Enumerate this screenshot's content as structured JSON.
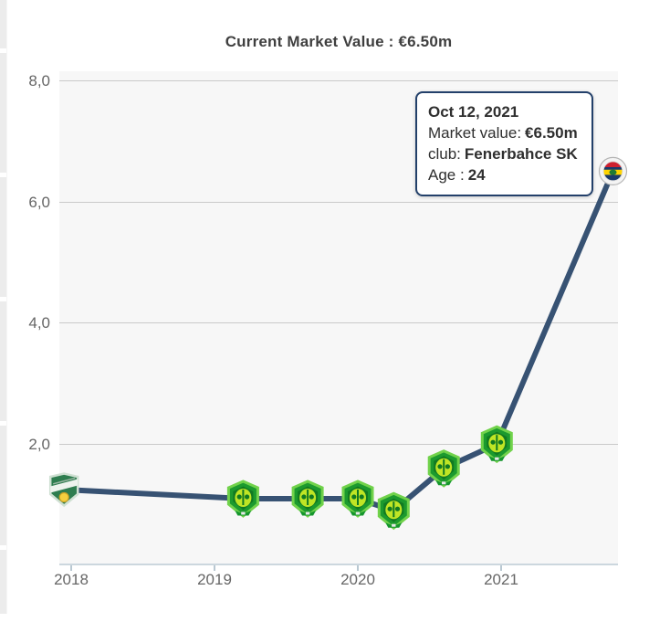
{
  "chart": {
    "title": "Current Market Value : €6.50m"
  },
  "tooltip": {
    "date": "Oct 12, 2021",
    "market_value_label": "Market value:",
    "market_value": "€6.50m",
    "club_label": "club:",
    "club": "Fenerbahce SK",
    "age_label": "Age :",
    "age": "24"
  },
  "chart_data": {
    "type": "line",
    "title": "Current Market Value : €6.50m",
    "xlabel": "",
    "ylabel": "",
    "x_ticks": [
      "2018",
      "2019",
      "2020",
      "2021"
    ],
    "y_ticks": [
      {
        "value": 8,
        "label": "8,0"
      },
      {
        "value": 6,
        "label": "6,0"
      },
      {
        "value": 4,
        "label": "4,0"
      },
      {
        "value": 2,
        "label": "2,0"
      }
    ],
    "ylim": [
      0,
      8.2
    ],
    "xlim_years": [
      2017.8,
      2021.9
    ],
    "grid": true,
    "legend": "none",
    "line_width": 6,
    "points": [
      {
        "x": 2017.95,
        "value": 1.25,
        "marker": "green-shield-banner-crest"
      },
      {
        "x": 2019.2,
        "value": 1.1,
        "marker": "green-shield-crest"
      },
      {
        "x": 2019.65,
        "value": 1.1,
        "marker": "green-shield-crest"
      },
      {
        "x": 2020.0,
        "value": 1.1,
        "marker": "green-shield-crest"
      },
      {
        "x": 2020.25,
        "value": 0.9,
        "marker": "green-shield-crest"
      },
      {
        "x": 2020.6,
        "value": 1.6,
        "marker": "green-shield-crest"
      },
      {
        "x": 2020.97,
        "value": 2.0,
        "marker": "green-shield-crest"
      },
      {
        "x": 2021.78,
        "value": 6.5,
        "marker": "fenerbahce-crest",
        "date": "Oct 12, 2021"
      }
    ]
  },
  "colors": {
    "line": "#375273",
    "plot_background": "#f7f7f7",
    "gridline": "#c9c9c9",
    "axis_line": "#ccd7de",
    "tick_label": "#666666",
    "title_text": "#3f3f3f",
    "tooltip_border": "#23406a",
    "tooltip_text": "#2f2f2f"
  }
}
